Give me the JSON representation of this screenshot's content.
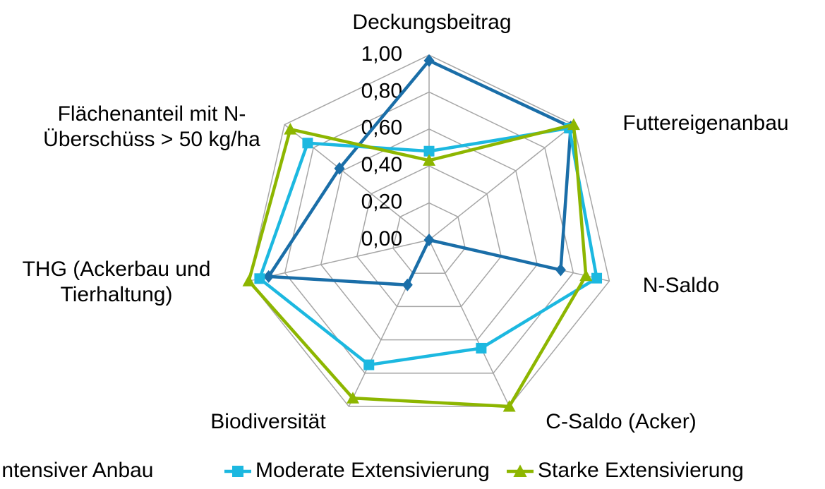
{
  "chart_data": {
    "type": "radar",
    "categories": [
      "Deckungsbeitrag",
      "Futtereigenanbau",
      "N-Saldo",
      "C-Saldo (Acker)",
      "Biodiversität",
      "THG (Ackerbau und Tierhaltung)",
      "Flächenanteil mit N-Überschüss > 50 kg/ha"
    ],
    "series": [
      {
        "name": "Intensiver Anbau",
        "color": "#1a6ea8",
        "marker": "diamond",
        "values": [
          0.97,
          0.98,
          0.73,
          0,
          0.27,
          0.89,
          0.62
        ]
      },
      {
        "name": "Moderate Extensivierung",
        "color": "#1cb8e0",
        "marker": "square",
        "values": [
          0.48,
          0.97,
          0.93,
          0.65,
          0.75,
          0.94,
          0.84
        ]
      },
      {
        "name": "Starke Extensivierung",
        "color": "#8db600",
        "marker": "triangle",
        "values": [
          0.43,
          1.0,
          0.87,
          1.0,
          0.95,
          1.0,
          0.96
        ]
      }
    ],
    "ylim": [
      0,
      1
    ],
    "yticks": [
      {
        "value": 0,
        "label": "0,00"
      },
      {
        "value": 0.2,
        "label": "0,20"
      },
      {
        "value": 0.4,
        "label": "0,40"
      },
      {
        "value": 0.6,
        "label": "0,60"
      },
      {
        "value": 0.8,
        "label": "0,80"
      },
      {
        "value": 1,
        "label": "1,00"
      }
    ],
    "grid": true,
    "legend": "bottom"
  }
}
